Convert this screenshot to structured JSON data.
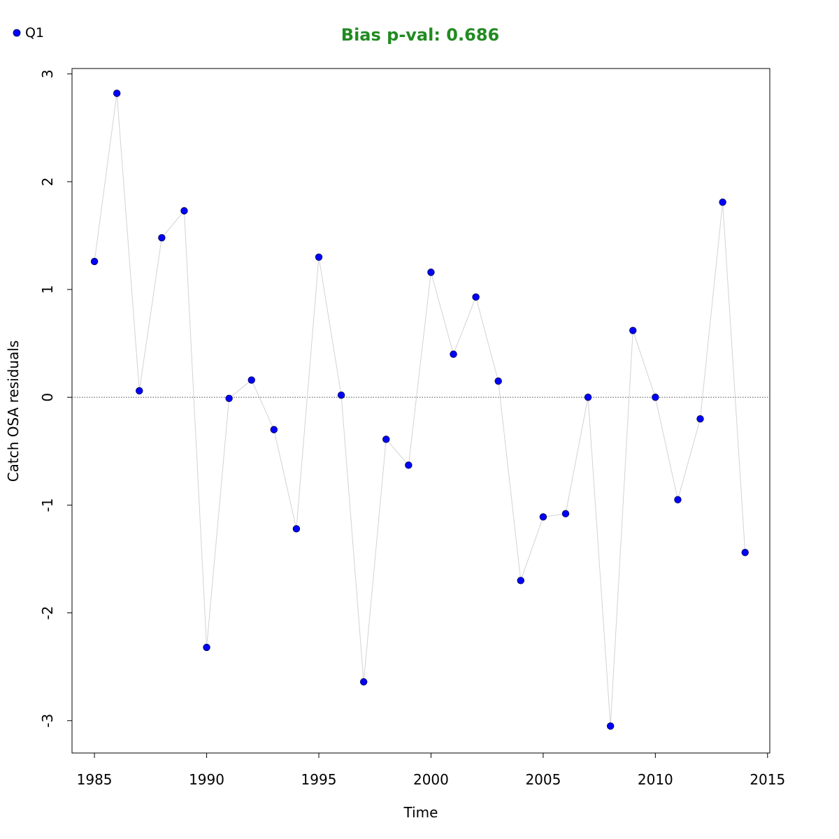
{
  "chart_data": {
    "type": "scatter",
    "title": "Bias p-val: 0.686",
    "xlabel": "Time",
    "ylabel": "Catch OSA residuals",
    "xlim": [
      1984,
      2015.1
    ],
    "ylim": [
      -3.3,
      3.05
    ],
    "x_ticks": [
      1985,
      1990,
      1995,
      2000,
      2005,
      2010,
      2015
    ],
    "y_ticks": [
      -3,
      -2,
      -1,
      0,
      1,
      2,
      3
    ],
    "reference_line": 0,
    "grid": false,
    "legend_position": "top-left",
    "series": [
      {
        "name": "Q1",
        "x": [
          1985,
          1986,
          1987,
          1988,
          1989,
          1990,
          1991,
          1992,
          1993,
          1994,
          1995,
          1996,
          1997,
          1998,
          1999,
          2000,
          2001,
          2002,
          2003,
          2004,
          2005,
          2006,
          2007,
          2008,
          2009,
          2010,
          2011,
          2012,
          2013,
          2014
        ],
        "values": [
          1.26,
          2.82,
          0.06,
          1.48,
          1.73,
          -2.32,
          -0.01,
          0.16,
          -0.3,
          -1.22,
          1.3,
          0.02,
          -2.64,
          -0.39,
          -0.63,
          1.16,
          0.4,
          0.93,
          0.15,
          -1.7,
          -1.11,
          -1.08,
          0.0,
          -3.05,
          0.62,
          0.0,
          -0.95,
          -0.2,
          1.81,
          -1.44
        ]
      }
    ]
  },
  "colors": {
    "title": "#228B22",
    "point_fill": "#0000FF",
    "point_stroke": "#000044",
    "connector": "#D3D3D3",
    "zero_line": "#707070",
    "axis": "#000000"
  }
}
